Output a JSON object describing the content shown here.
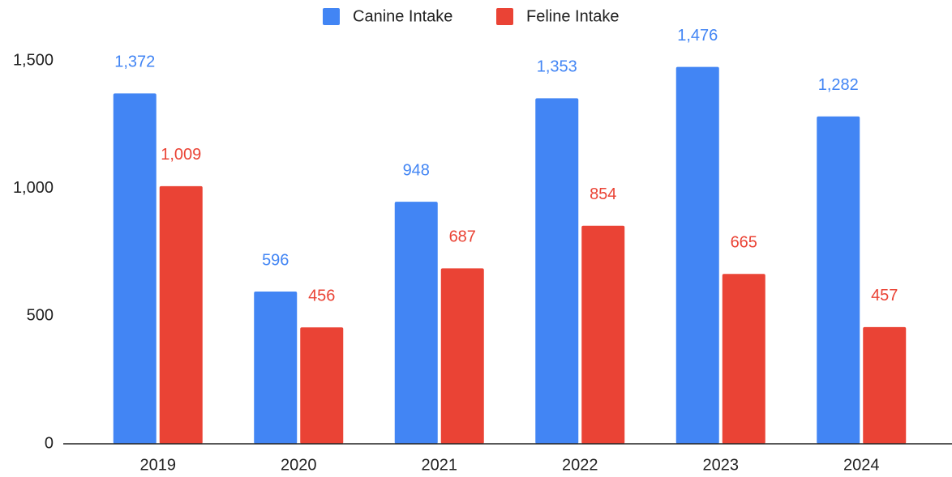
{
  "chart_data": {
    "type": "bar",
    "categories": [
      "2019",
      "2020",
      "2021",
      "2022",
      "2023",
      "2024"
    ],
    "series": [
      {
        "name": "Canine Intake",
        "color": "#4285f4",
        "values": [
          1372,
          596,
          948,
          1353,
          1476,
          1282
        ],
        "value_labels": [
          "1,372",
          "596",
          "948",
          "1,353",
          "1,476",
          "1,282"
        ]
      },
      {
        "name": "Feline Intake",
        "color": "#ea4335",
        "values": [
          1009,
          456,
          687,
          854,
          665,
          457
        ],
        "value_labels": [
          "1,009",
          "456",
          "687",
          "854",
          "665",
          "457"
        ]
      }
    ],
    "ylim": [
      0,
      1500
    ],
    "yticks": [
      0,
      500,
      {
        "value": 1000,
        "label": "1,000"
      },
      {
        "value": 1500,
        "label": "1,500"
      }
    ],
    "grid": false,
    "legend": "top"
  }
}
